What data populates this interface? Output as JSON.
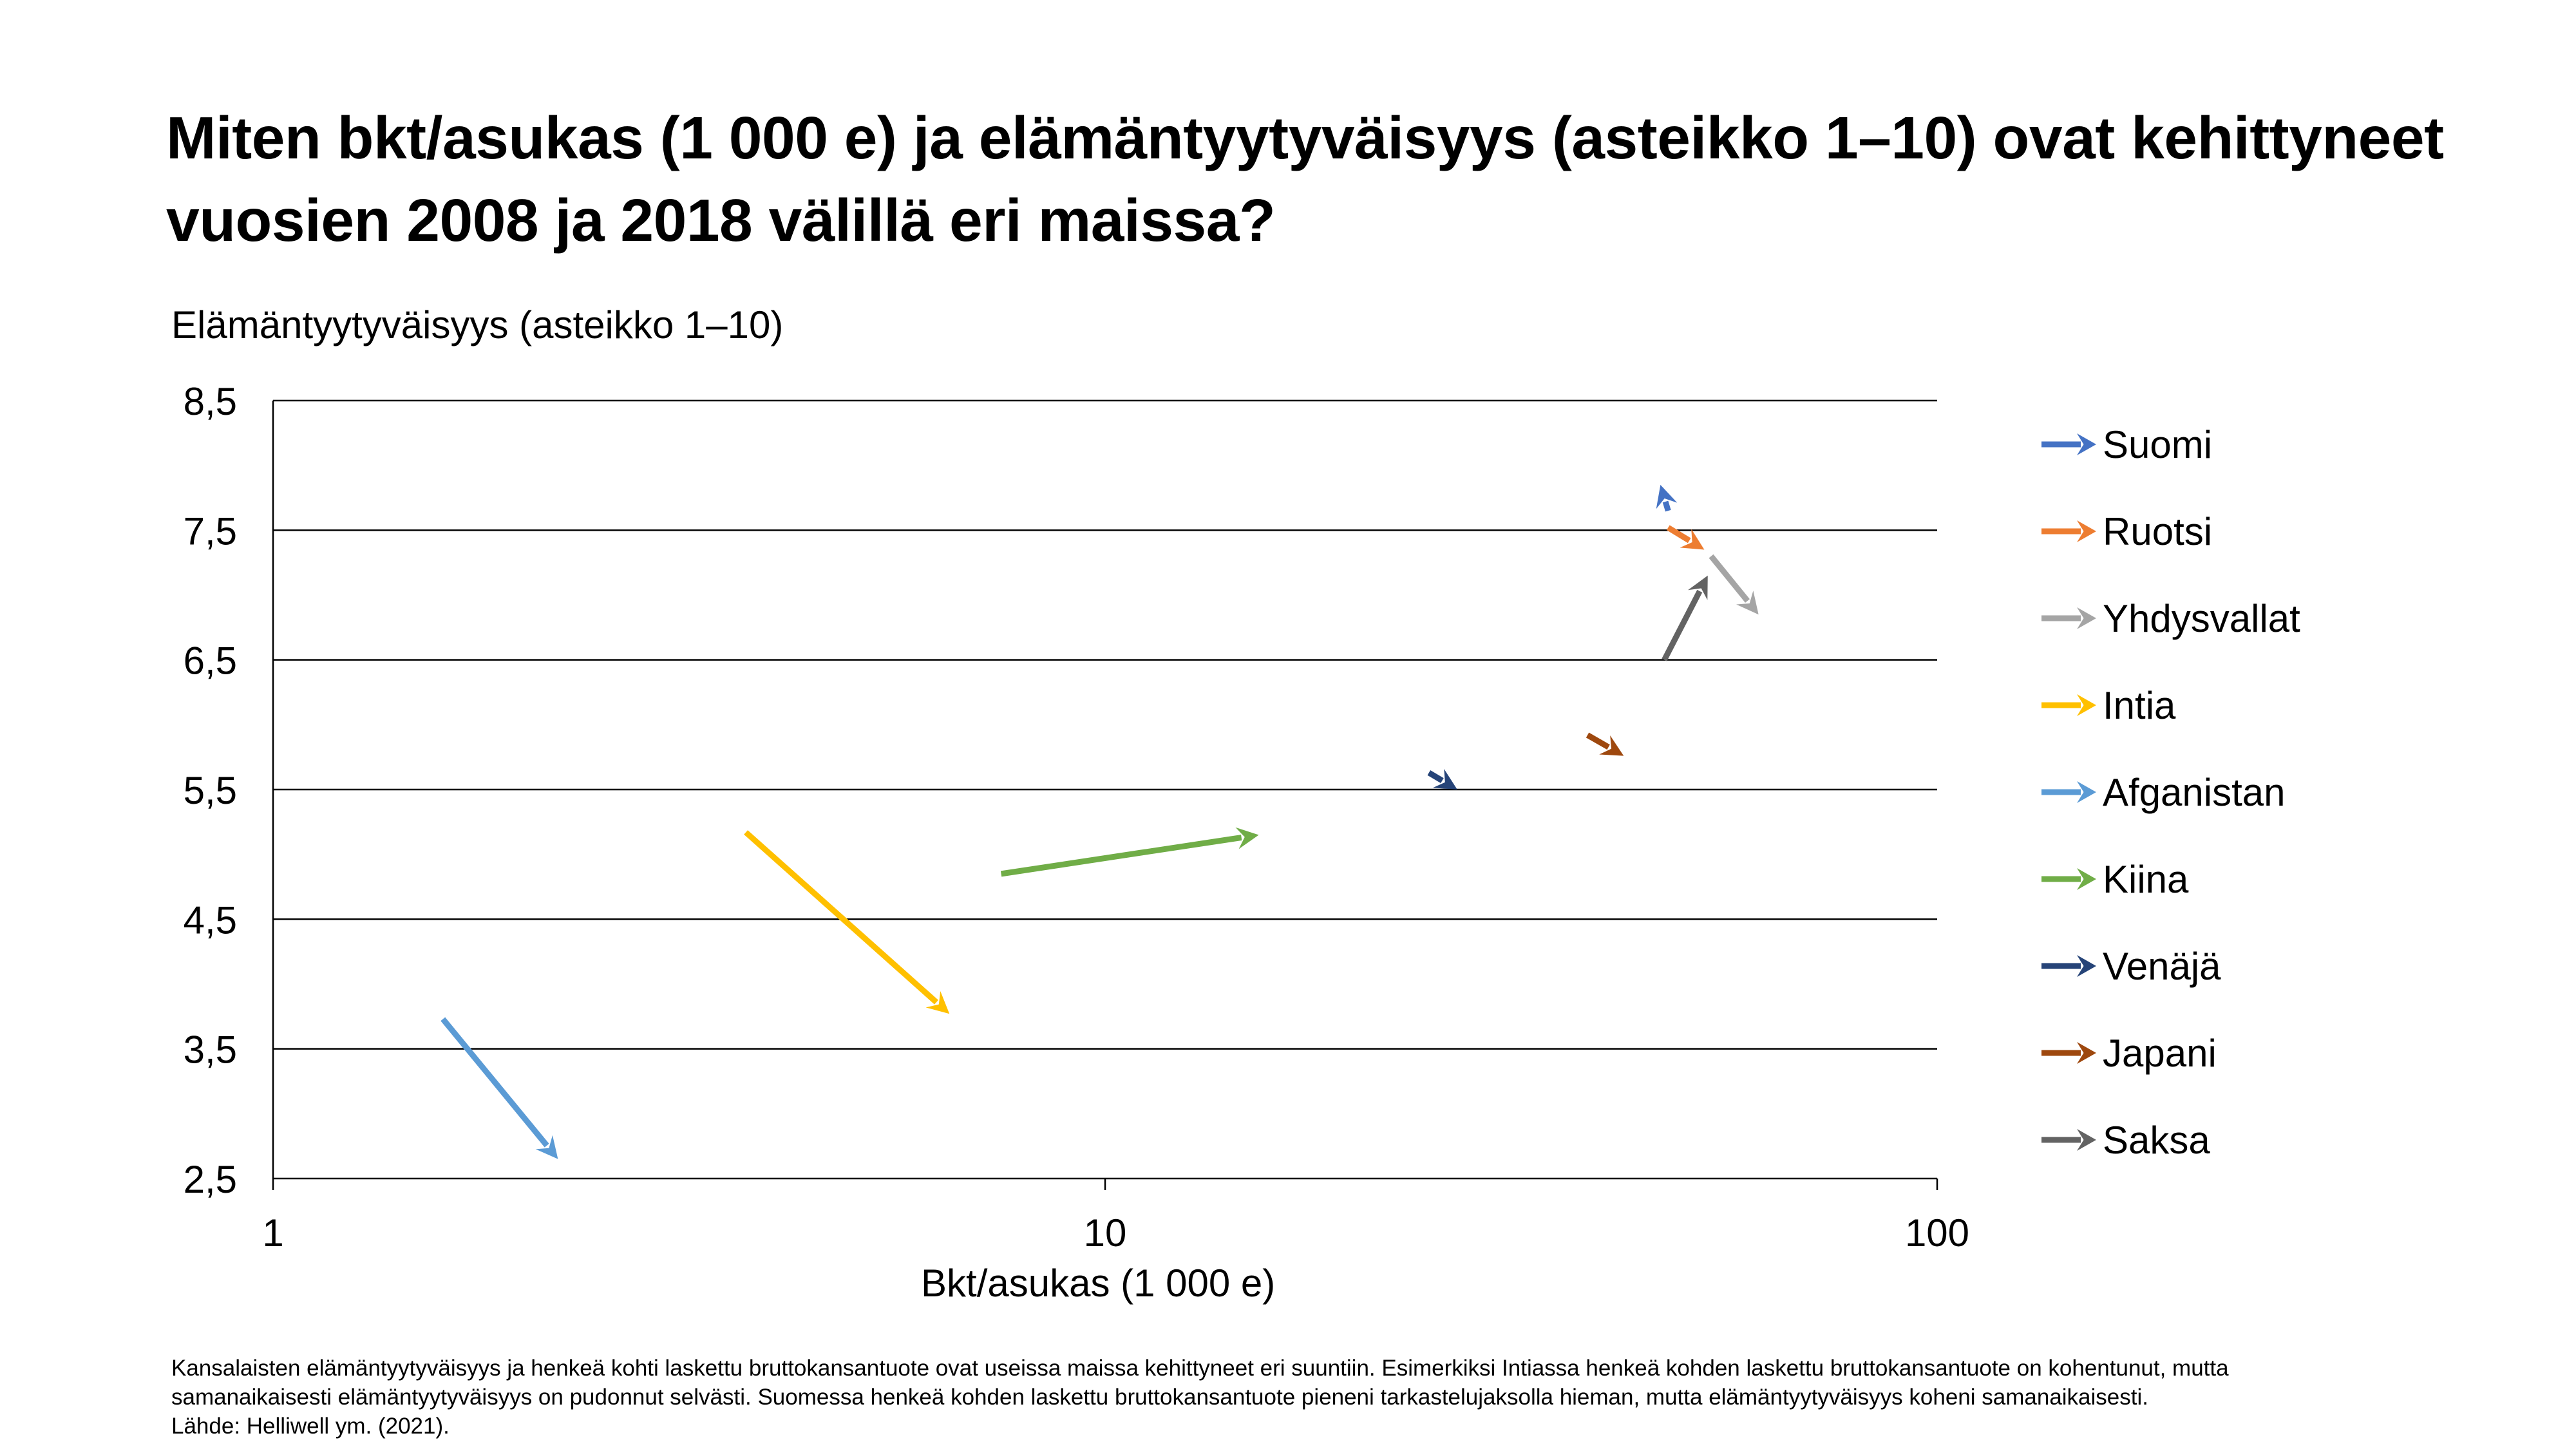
{
  "title": {
    "line1": "Miten bkt/asukas (1 000 e) ja elämäntyytyväisyys (asteikko 1–10) ovat kehittyneet",
    "line2": "vuosien 2008 ja 2018 välillä eri maissa?"
  },
  "footnote": {
    "line1": "Kansalaisten elämäntyytyväisyys ja henkeä kohti laskettu bruttokansantuote ovat useissa maissa kehittyneet eri suuntiin. Esimerkiksi Intiassa henkeä kohden laskettu bruttokansantuote on kohentunut, mutta",
    "line2": "samanaikaisesti elämäntyytyväisyys on pudonnut selvästi. Suomessa henkeä kohden laskettu bruttokansantuote pieneni tarkastelujaksolla hieman, mutta elämäntyytyväisyys koheni samanaikaisesti.",
    "line3": "Lähde: Helliwell ym. (2021)."
  },
  "chart_data": {
    "type": "scatter",
    "title": "Miten bkt/asukas (1 000 e) ja elämäntyytyväisyys (asteikko 1–10) ovat kehittyneet vuosien 2008 ja 2018 välillä eri maissa?",
    "xlabel": "Bkt/asukas (1 000 e)",
    "ylabel": "Elämäntyytyväisyys (asteikko 1–10)",
    "x_scale": "log",
    "xlim": [
      1,
      100
    ],
    "ylim": [
      2.5,
      8.5
    ],
    "x_ticks": [
      "1",
      "10",
      "100"
    ],
    "y_ticks": [
      "2,5",
      "3,5",
      "4,5",
      "5,5",
      "6,5",
      "7,5",
      "8,5"
    ],
    "grid": "horizontal",
    "legend_position": "right",
    "series": [
      {
        "name": "Suomi",
        "color": "#4472C4",
        "x": [
          47.5,
          46.5
        ],
        "y": [
          7.65,
          7.85
        ]
      },
      {
        "name": "Ruotsi",
        "color": "#ED7D31",
        "x": [
          47.5,
          52.5
        ],
        "y": [
          7.52,
          7.35
        ]
      },
      {
        "name": "Yhdysvallat",
        "color": "#A5A5A5",
        "x": [
          53.5,
          61
        ],
        "y": [
          7.3,
          6.85
        ]
      },
      {
        "name": "Intia",
        "color": "#FFC000",
        "x": [
          3.7,
          6.5
        ],
        "y": [
          5.17,
          3.77
        ]
      },
      {
        "name": "Afganistan",
        "color": "#5B9BD5",
        "x": [
          1.6,
          2.2
        ],
        "y": [
          3.73,
          2.65
        ]
      },
      {
        "name": "Kiina",
        "color": "#70AD47",
        "x": [
          7.5,
          15.3
        ],
        "y": [
          4.85,
          5.15
        ]
      },
      {
        "name": "Venäjä",
        "color": "#264478",
        "x": [
          24.5,
          26.5
        ],
        "y": [
          5.63,
          5.5
        ]
      },
      {
        "name": "Japani",
        "color": "#9E480E",
        "x": [
          38,
          42
        ],
        "y": [
          5.92,
          5.76
        ]
      },
      {
        "name": "Saksa",
        "color": "#636363",
        "x": [
          47,
          53
        ],
        "y": [
          6.5,
          7.15
        ]
      }
    ]
  }
}
